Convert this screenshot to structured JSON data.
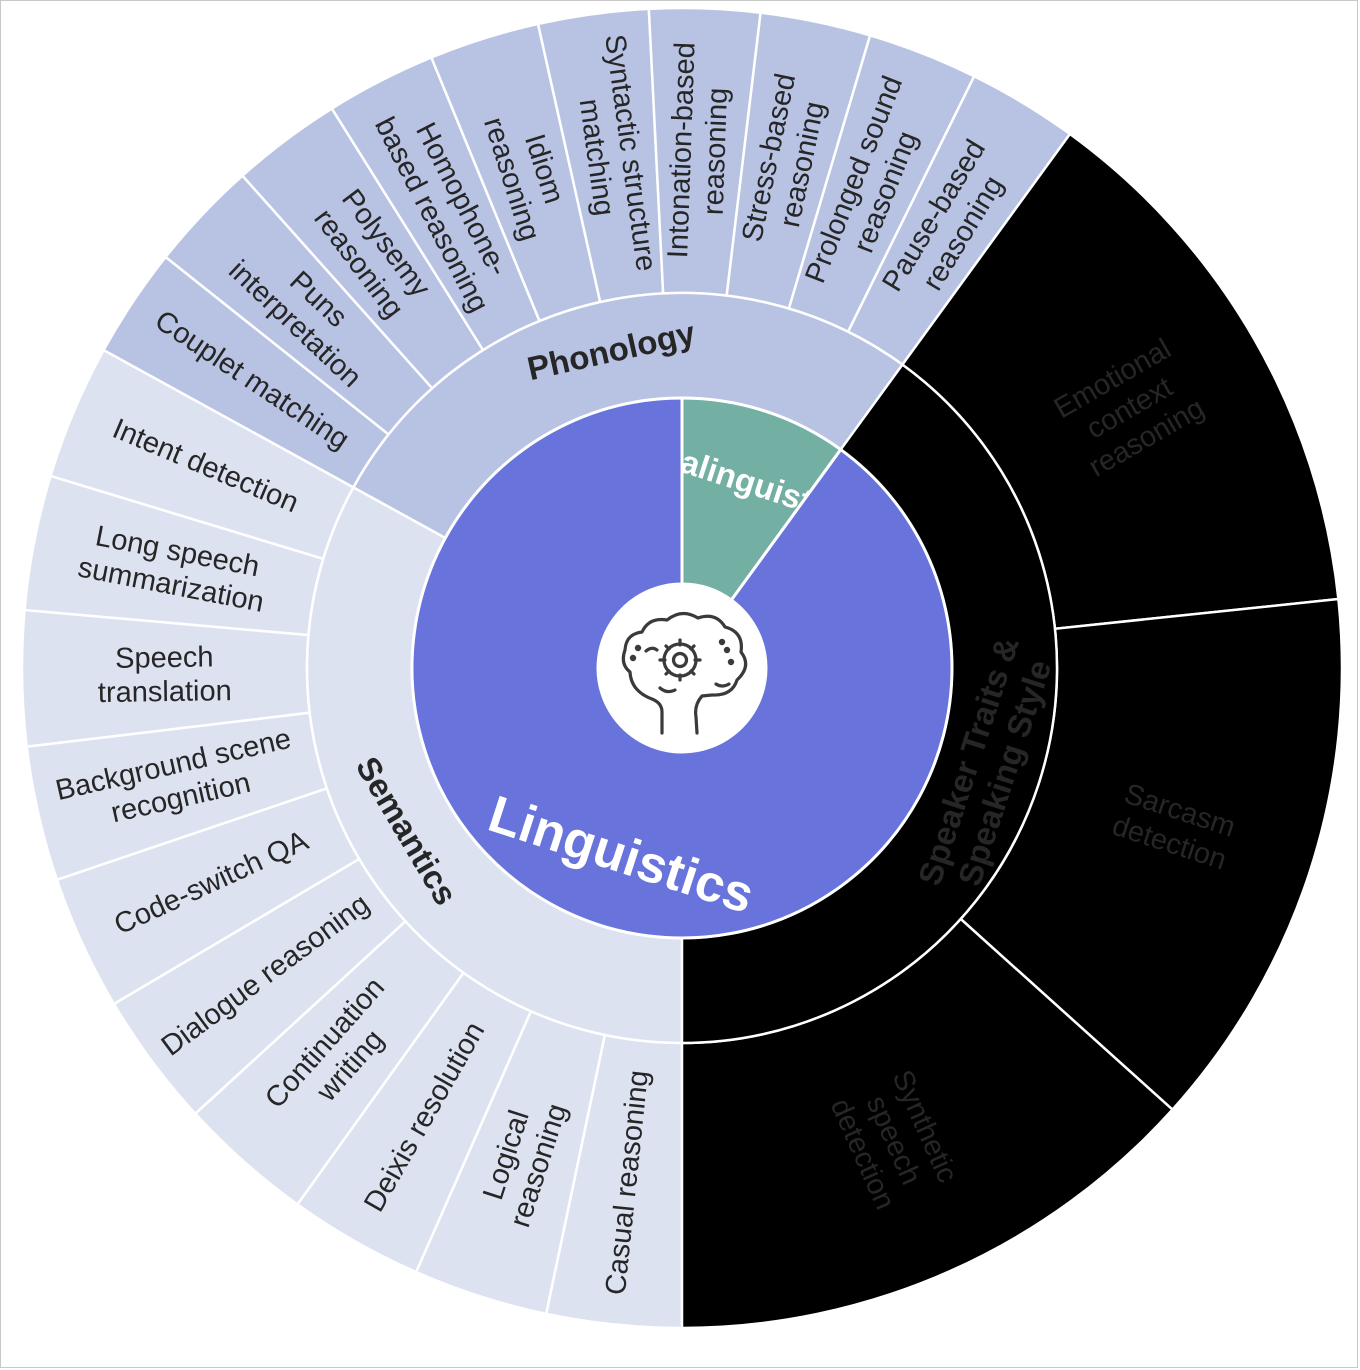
{
  "colors": {
    "paralinguistics_core": "#73afa3",
    "paralinguistics_mid": "#dbf1ef",
    "paralinguistics_leaf": "#dbf1ef",
    "linguistics_core": "#6873db",
    "phonology_mid": "#b8c3e4",
    "phonology_leaf": "#b8c3e4",
    "semantics_mid": "#dde2f1",
    "semantics_leaf": "#dde2f1",
    "divider": "#ffffff",
    "text_dark": "#262626",
    "text_light": "#ffffff"
  },
  "center_icon": "brain-gear-icon",
  "core": [
    {
      "id": "paralinguistics",
      "label": "Paralinguistics",
      "span": [
        0,
        0.1
      ]
    },
    {
      "id": "linguistics",
      "label": "Linguistics",
      "span": [
        0.1,
        1
      ]
    }
  ],
  "mid": [
    {
      "id": "semantics",
      "label": "Semantics",
      "span": [
        0.5,
        0.83
      ]
    },
    {
      "id": "phonology",
      "label": "Phonology",
      "span": [
        0.83,
        1.1
      ]
    },
    {
      "id": "speaker",
      "label": "Speaker Traits & Speaking Style",
      "span": [
        1.1,
        1.5
      ]
    }
  ],
  "leaves": [
    {
      "group": "semantics",
      "lines": [
        "Casual reasoning"
      ]
    },
    {
      "group": "semantics",
      "lines": [
        "Logical",
        "reasoning"
      ]
    },
    {
      "group": "semantics",
      "lines": [
        "Deixis resolution"
      ]
    },
    {
      "group": "semantics",
      "lines": [
        "Continuation",
        "writing"
      ]
    },
    {
      "group": "semantics",
      "lines": [
        "Dialogue reasoning"
      ]
    },
    {
      "group": "semantics",
      "lines": [
        "Code-switch QA"
      ]
    },
    {
      "group": "semantics",
      "lines": [
        "Background scene",
        "recognition"
      ]
    },
    {
      "group": "semantics",
      "lines": [
        "Speech",
        "translation"
      ]
    },
    {
      "group": "semantics",
      "lines": [
        "Long speech",
        "summarization"
      ]
    },
    {
      "group": "semantics",
      "lines": [
        "Intent detection"
      ]
    },
    {
      "group": "phonology",
      "lines": [
        "Couplet matching"
      ]
    },
    {
      "group": "phonology",
      "lines": [
        "Puns",
        "interpretation"
      ]
    },
    {
      "group": "phonology",
      "lines": [
        "Polysemy",
        "reasoning"
      ]
    },
    {
      "group": "phonology",
      "lines": [
        "Homophone-",
        "based reasoning"
      ]
    },
    {
      "group": "phonology",
      "lines": [
        "Idiom",
        "reasoning"
      ]
    },
    {
      "group": "phonology",
      "lines": [
        "Syntactic structure",
        "matching"
      ]
    },
    {
      "group": "phonology",
      "lines": [
        "Intonation-based",
        "reasoning"
      ]
    },
    {
      "group": "phonology",
      "lines": [
        "Stress-based",
        "reasoning"
      ]
    },
    {
      "group": "phonology",
      "lines": [
        "Prolonged sound",
        "reasoning"
      ]
    },
    {
      "group": "phonology",
      "lines": [
        "Pause-based",
        "reasoning"
      ]
    },
    {
      "group": "speaker",
      "lines": [
        "Emotional",
        "context",
        "reasoning"
      ]
    },
    {
      "group": "speaker",
      "lines": [
        "Sarcasm",
        "detection"
      ]
    },
    {
      "group": "speaker",
      "lines": [
        "Synthetic",
        "speech",
        "detection"
      ]
    }
  ]
}
